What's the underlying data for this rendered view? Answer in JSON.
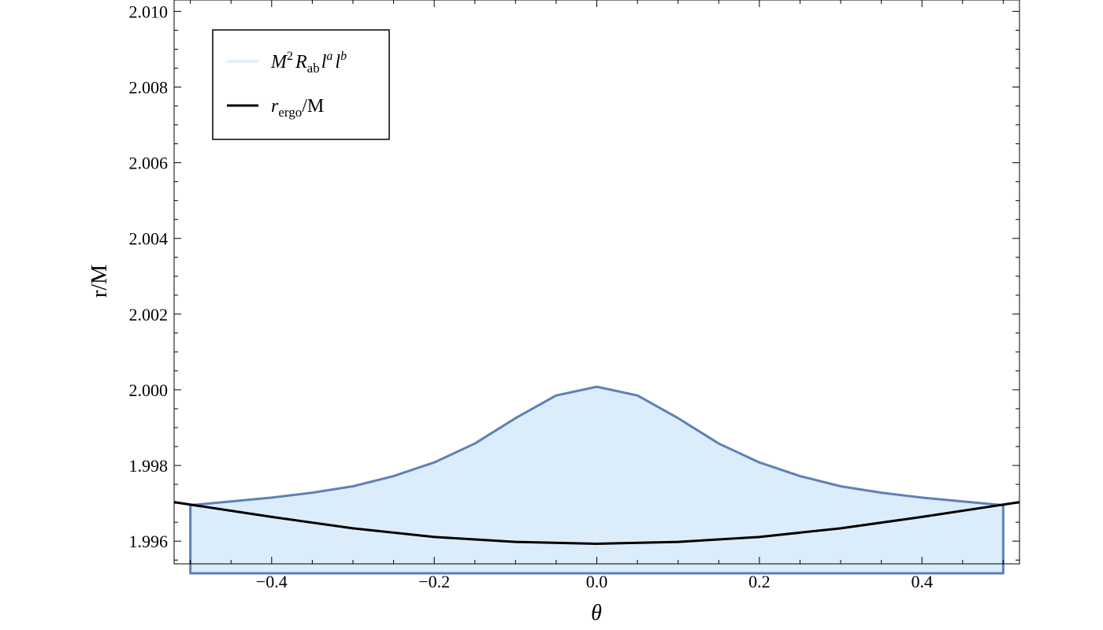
{
  "chart_data": {
    "type": "area",
    "xlabel": "θ",
    "ylabel": "r/M",
    "xlim": [
      -0.52,
      0.52
    ],
    "ylim": [
      1.9954,
      2.0103
    ],
    "x_ticks": [
      -0.4,
      -0.2,
      0.0,
      0.2,
      0.4
    ],
    "x_tick_labels": [
      "−0.4",
      "−0.2",
      "0.0",
      "0.2",
      "0.4"
    ],
    "y_ticks": [
      1.996,
      1.998,
      2.0,
      2.002,
      2.004,
      2.006,
      2.008,
      2.01
    ],
    "y_tick_labels": [
      "1.996",
      "1.998",
      "2.000",
      "2.002",
      "2.004",
      "2.006",
      "2.008",
      "2.010"
    ],
    "grid": false,
    "legend_position": "top-left",
    "series": [
      {
        "name": "M²R_ab l^a l^b",
        "kind": "filled-region",
        "fill_color": "#dbecfb",
        "stroke_color": "#5e81b5",
        "lower_bound": 1.99515,
        "x": [
          -0.5,
          -0.45,
          -0.4,
          -0.35,
          -0.3,
          -0.25,
          -0.2,
          -0.15,
          -0.1,
          -0.05,
          0.0,
          0.05,
          0.1,
          0.15,
          0.2,
          0.25,
          0.3,
          0.35,
          0.4,
          0.45,
          0.5
        ],
        "y": [
          1.99695,
          1.99705,
          1.99715,
          1.99728,
          1.99745,
          1.99772,
          1.99808,
          1.99858,
          1.99925,
          1.99985,
          2.00008,
          1.99985,
          1.99925,
          1.99858,
          1.99808,
          1.99772,
          1.99745,
          1.99728,
          1.99715,
          1.99705,
          1.99695
        ]
      },
      {
        "name": "r_ergo/M",
        "kind": "line",
        "stroke_color": "#000000",
        "x": [
          -0.52,
          -0.4,
          -0.3,
          -0.2,
          -0.1,
          0.0,
          0.1,
          0.2,
          0.3,
          0.4,
          0.52
        ],
        "y": [
          1.99703,
          1.99664,
          1.99634,
          1.99611,
          1.99598,
          1.99593,
          1.99598,
          1.99611,
          1.99634,
          1.99664,
          1.99703
        ]
      }
    ],
    "legend": {
      "entry1": {
        "italic_M": "M",
        "sup_2": "2",
        "italic_R": "R",
        "sub_ab": "ab",
        "italic_l1": "l",
        "sup_a": "a",
        "italic_l2": "l",
        "sup_b": "b"
      },
      "entry2": {
        "italic_r": "r",
        "sub_ergo": "ergo",
        "suffix": "/M"
      }
    }
  }
}
